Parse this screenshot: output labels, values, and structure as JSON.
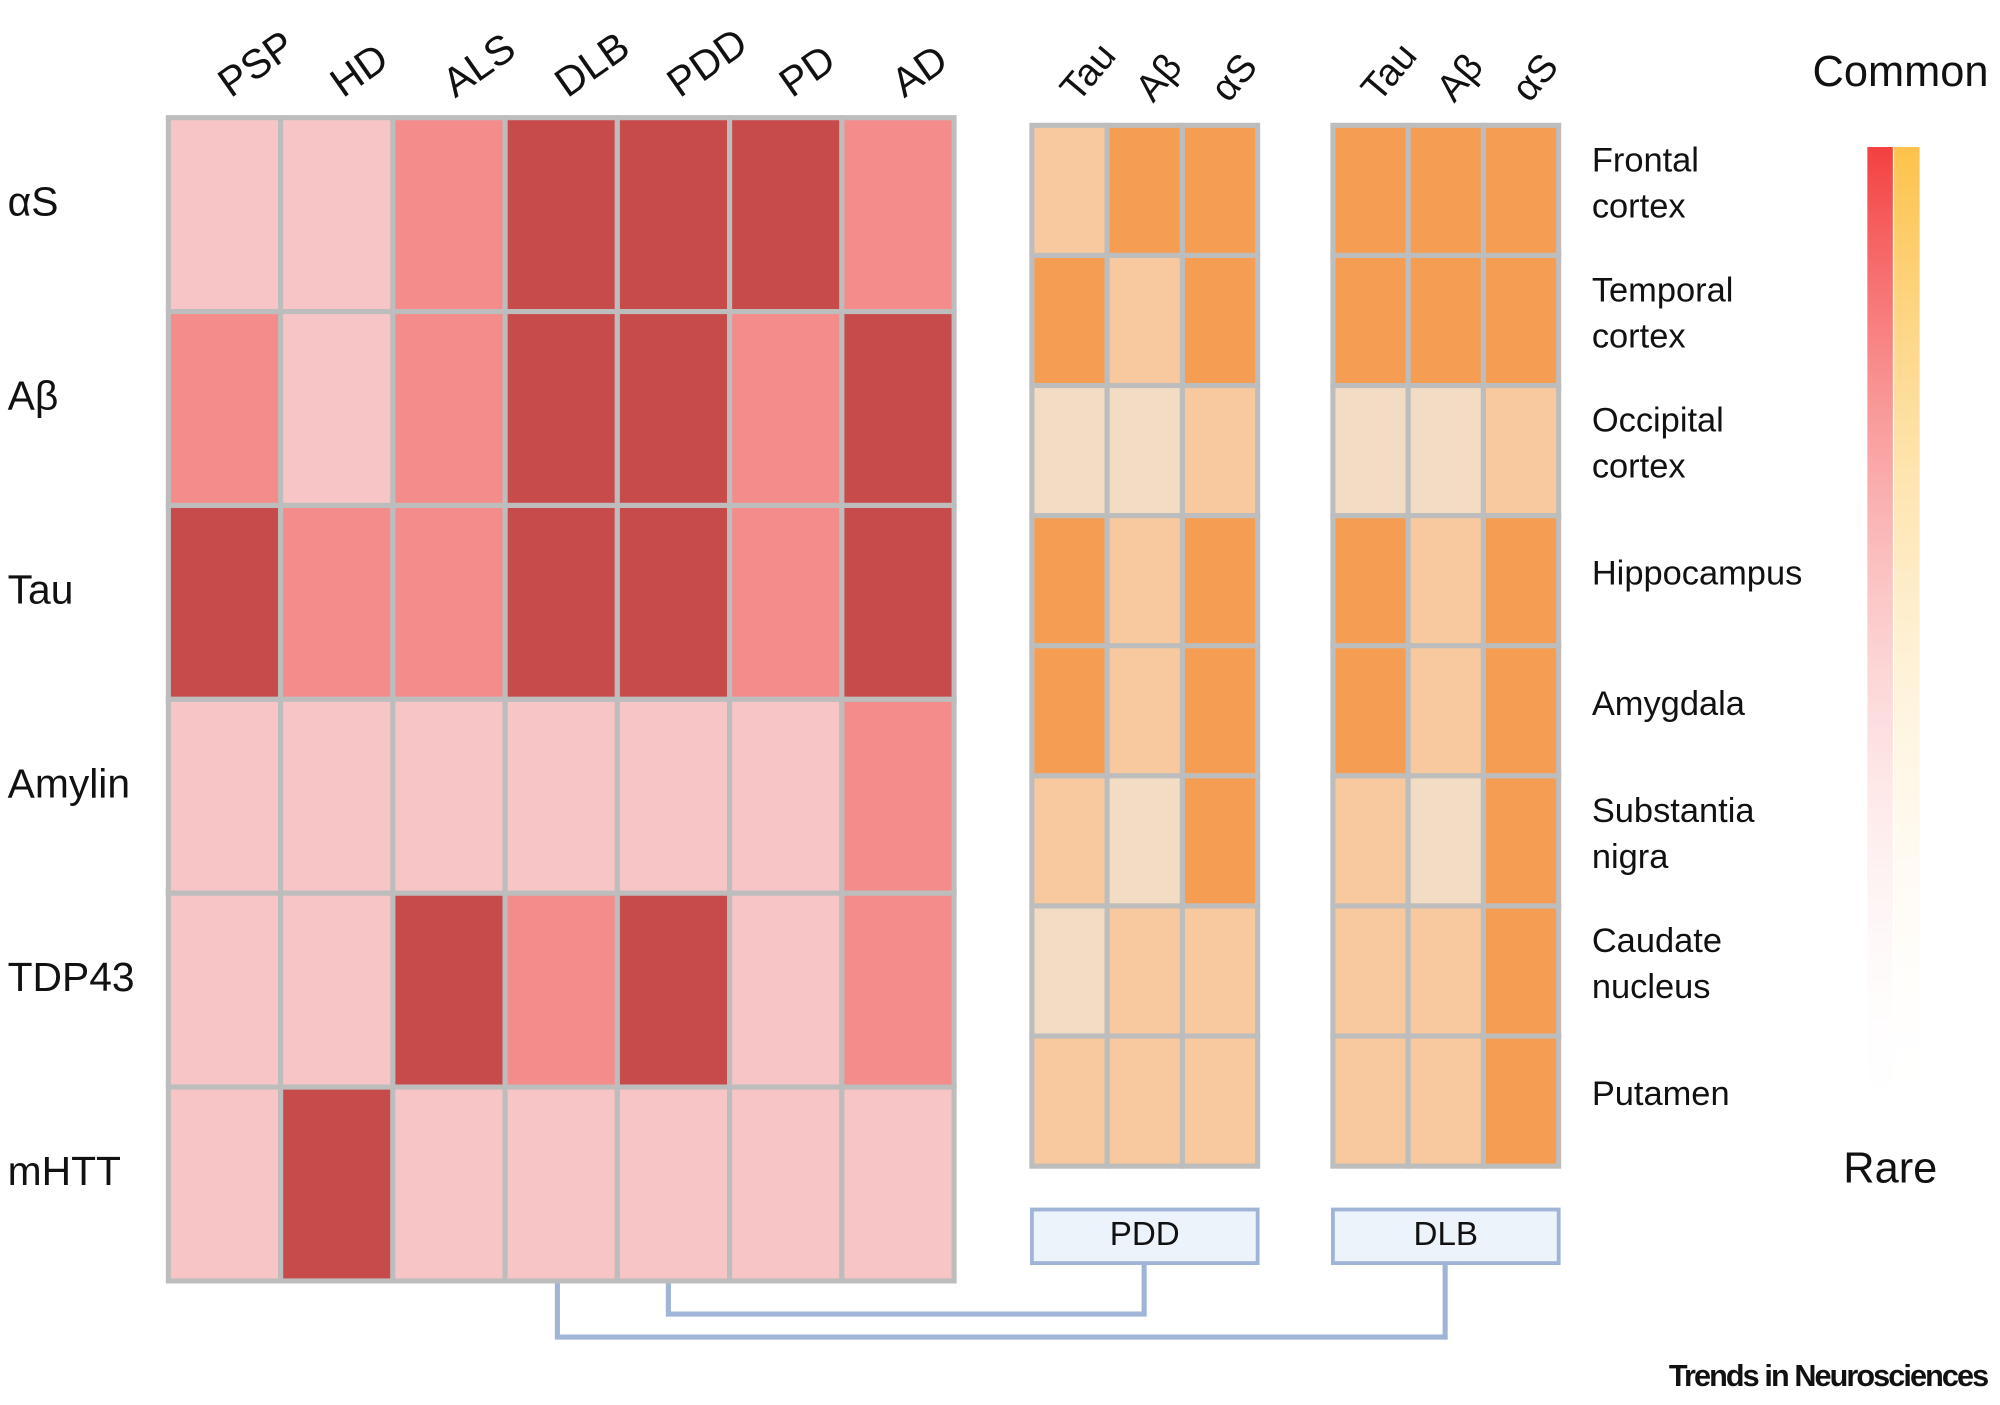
{
  "chart_data": [
    {
      "type": "heatmap",
      "x_categories": [
        "PSP",
        "HD",
        "ALS",
        "DLB",
        "PDD",
        "PD",
        "AD"
      ],
      "y_categories": [
        "αS",
        "Aβ",
        "Tau",
        "Amylin",
        "TDP43",
        "mHTT"
      ],
      "values": [
        [
          1,
          1,
          2,
          3,
          3,
          3,
          2
        ],
        [
          2,
          1,
          2,
          3,
          3,
          2,
          3
        ],
        [
          3,
          2,
          2,
          3,
          3,
          2,
          3
        ],
        [
          1,
          1,
          1,
          1,
          1,
          1,
          2
        ],
        [
          1,
          1,
          3,
          2,
          3,
          1,
          2
        ],
        [
          1,
          3,
          1,
          1,
          1,
          1,
          1
        ]
      ],
      "colors": [
        "#f7c5c5",
        "#f48c8c",
        "#c84b4b"
      ]
    },
    {
      "type": "heatmap",
      "title": "PDD",
      "x_categories": [
        "Tau",
        "Aβ",
        "αS"
      ],
      "values": [
        [
          2,
          3,
          3
        ],
        [
          3,
          2,
          3
        ],
        [
          1,
          1,
          2
        ],
        [
          3,
          2,
          3
        ],
        [
          3,
          2,
          3
        ],
        [
          2,
          1,
          3
        ],
        [
          1,
          2,
          2
        ],
        [
          2,
          2,
          2
        ]
      ],
      "colors": [
        "#f3dcc4",
        "#f8c89e",
        "#f59e53"
      ]
    },
    {
      "type": "heatmap",
      "title": "DLB",
      "x_categories": [
        "Tau",
        "Aβ",
        "αS"
      ],
      "y_categories": [
        [
          "Frontal",
          "cortex"
        ],
        [
          "Temporal",
          "cortex"
        ],
        [
          "Occipital",
          "cortex"
        ],
        [
          "Hippocampus"
        ],
        [
          "Amygdala"
        ],
        [
          "Substantia",
          "nigra"
        ],
        [
          "Caudate",
          "nucleus"
        ],
        [
          "Putamen"
        ]
      ],
      "values": [
        [
          3,
          3,
          3
        ],
        [
          3,
          3,
          3
        ],
        [
          1,
          1,
          2
        ],
        [
          3,
          2,
          3
        ],
        [
          3,
          2,
          3
        ],
        [
          2,
          1,
          3
        ],
        [
          2,
          2,
          3
        ],
        [
          2,
          2,
          3
        ]
      ],
      "colors": [
        "#f3dcc4",
        "#f8c89e",
        "#f59e53"
      ],
      "legend": {
        "high": "Common",
        "low": "Rare"
      },
      "source": "Trends in Neurosciences"
    }
  ]
}
